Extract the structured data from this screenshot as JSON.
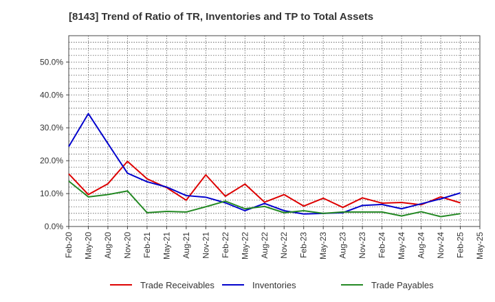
{
  "chart_data": {
    "type": "line",
    "title": "[8143]  Trend of Ratio of TR, Inventories and TP to Total Assets",
    "xlabel": "",
    "ylabel": "",
    "categories": [
      "Feb-20",
      "May-20",
      "Aug-20",
      "Nov-20",
      "Feb-21",
      "May-21",
      "Aug-21",
      "Nov-21",
      "Feb-22",
      "May-22",
      "Aug-22",
      "Nov-22",
      "Feb-23",
      "May-23",
      "Aug-23",
      "Nov-23",
      "Feb-24",
      "May-24",
      "Aug-24",
      "Nov-24",
      "Feb-25",
      "May-25"
    ],
    "ylim": [
      0,
      0.58
    ],
    "yticks": [
      0,
      0.1,
      0.2,
      0.3,
      0.4,
      0.5
    ],
    "ytick_labels": [
      "0.0%",
      "10.0%",
      "20.0%",
      "30.0%",
      "40.0%",
      "50.0%"
    ],
    "grid": true,
    "legend_position": "bottom",
    "series": [
      {
        "name": "Trade Receivables",
        "color": "#dd0000",
        "values": [
          0.16,
          0.097,
          0.13,
          0.198,
          0.145,
          0.118,
          0.08,
          0.157,
          0.092,
          0.129,
          0.074,
          0.097,
          0.062,
          0.086,
          0.058,
          0.087,
          0.071,
          0.073,
          0.066,
          0.09,
          0.072,
          null
        ]
      },
      {
        "name": "Inventories",
        "color": "#0000cc",
        "values": [
          0.243,
          0.343,
          0.252,
          0.162,
          0.136,
          0.12,
          0.094,
          0.089,
          0.072,
          0.048,
          0.07,
          0.048,
          0.038,
          0.04,
          0.042,
          0.064,
          0.067,
          0.054,
          0.069,
          0.084,
          0.102,
          null
        ]
      },
      {
        "name": "Trade Payables",
        "color": "#228822",
        "values": [
          0.138,
          0.09,
          0.097,
          0.108,
          0.042,
          0.046,
          0.044,
          0.06,
          0.077,
          0.054,
          0.061,
          0.042,
          0.048,
          0.04,
          0.044,
          0.044,
          0.044,
          0.032,
          0.045,
          0.03,
          0.039,
          null
        ]
      }
    ]
  }
}
